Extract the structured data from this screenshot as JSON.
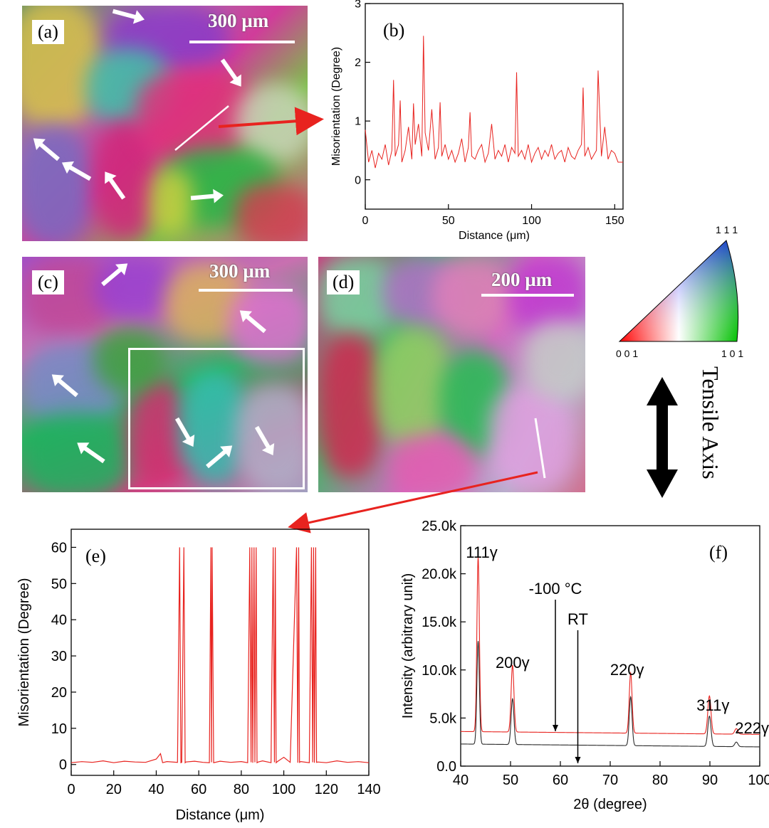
{
  "panels": {
    "a": {
      "label": "(a)",
      "scale": "300 µm"
    },
    "b": {
      "label": "(b)"
    },
    "c": {
      "label": "(c)",
      "scale": "300 µm"
    },
    "d": {
      "label": "(d)",
      "scale": "200 µm"
    },
    "e": {
      "label": "(e)"
    },
    "f": {
      "label": "(f)"
    }
  },
  "ipf_key": {
    "top": "1 1 1",
    "left": "0 0 1",
    "right": "1 0 1"
  },
  "tensile_axis": "Tensile Axis",
  "colors": {
    "red": "#e8231f",
    "dark": "#2b2b2b"
  },
  "chart_data": [
    {
      "id": "b",
      "type": "line",
      "title": "",
      "xlabel": "Distance (μm)",
      "ylabel": "Misorientation (Degree)",
      "xlim": [
        0,
        155
      ],
      "ylim": [
        -0.5,
        3
      ],
      "xticks": [
        0,
        50,
        100,
        150
      ],
      "yticks": [
        0,
        1,
        2,
        3
      ],
      "series": [
        {
          "name": "misorientation",
          "color": "#e8231f",
          "x": [
            0,
            2,
            4,
            6,
            8,
            10,
            12,
            14,
            16,
            17,
            18,
            20,
            21,
            22,
            24,
            26,
            28,
            29,
            30,
            32,
            34,
            35,
            36,
            38,
            40,
            42,
            44,
            45,
            46,
            48,
            50,
            52,
            54,
            56,
            58,
            60,
            62,
            63,
            64,
            66,
            68,
            70,
            72,
            74,
            76,
            78,
            80,
            82,
            84,
            86,
            88,
            90,
            91,
            92,
            94,
            96,
            98,
            100,
            102,
            104,
            106,
            108,
            110,
            112,
            114,
            116,
            118,
            120,
            122,
            124,
            126,
            128,
            130,
            131,
            132,
            134,
            136,
            138,
            139,
            140,
            142,
            144,
            146,
            148,
            150,
            152,
            155
          ],
          "y": [
            0.85,
            0.3,
            0.5,
            0.2,
            0.45,
            0.35,
            0.6,
            0.25,
            0.5,
            1.7,
            0.4,
            0.6,
            1.35,
            0.3,
            0.5,
            0.9,
            0.35,
            1.3,
            0.6,
            0.95,
            0.4,
            2.45,
            0.8,
            0.5,
            1.2,
            0.35,
            0.55,
            1.32,
            0.4,
            0.6,
            0.35,
            0.5,
            0.3,
            0.45,
            0.7,
            0.3,
            0.55,
            1.15,
            0.4,
            0.35,
            0.5,
            0.6,
            0.3,
            0.45,
            0.95,
            0.35,
            0.5,
            0.4,
            0.6,
            0.3,
            0.55,
            0.45,
            1.83,
            0.4,
            0.5,
            0.35,
            0.6,
            0.3,
            0.45,
            0.55,
            0.35,
            0.5,
            0.4,
            0.6,
            0.35,
            0.45,
            0.5,
            0.3,
            0.55,
            0.4,
            0.35,
            0.5,
            0.6,
            1.57,
            0.4,
            0.55,
            0.35,
            0.45,
            0.5,
            1.86,
            0.4,
            0.9,
            0.35,
            0.5,
            0.45,
            0.3,
            0.3
          ]
        }
      ]
    },
    {
      "id": "e",
      "type": "line",
      "title": "",
      "xlabel": "Distance (μm)",
      "ylabel": "Misorientation (Degree)",
      "xlim": [
        0,
        140
      ],
      "ylim": [
        -3,
        65
      ],
      "xticks": [
        0,
        20,
        40,
        60,
        80,
        100,
        120,
        140
      ],
      "yticks": [
        0,
        10,
        20,
        30,
        40,
        50,
        60
      ],
      "series": [
        {
          "name": "misorientation",
          "color": "#e8231f",
          "x": [
            0,
            5,
            10,
            15,
            20,
            25,
            30,
            35,
            40,
            42,
            43,
            45,
            50,
            51,
            51.6,
            52,
            53,
            53.6,
            54,
            58,
            62,
            65,
            65.7,
            66,
            66.3,
            67,
            70,
            75,
            80,
            83,
            84,
            84.6,
            85,
            85.4,
            86,
            86.4,
            87,
            87.4,
            88,
            90,
            94,
            95,
            95.6,
            96,
            96.4,
            97,
            100,
            103,
            106,
            106.6,
            107,
            107.4,
            108,
            112,
            113,
            113.6,
            114,
            114.4,
            115,
            115.4,
            116,
            120,
            125,
            130,
            135,
            140
          ],
          "y": [
            0.5,
            0.8,
            0.6,
            1.0,
            0.5,
            0.9,
            0.7,
            0.6,
            1.5,
            3.0,
            0.5,
            0.8,
            0.6,
            60,
            0.5,
            0.6,
            60,
            0.5,
            0.7,
            0.9,
            0.6,
            0.5,
            60,
            0.6,
            60,
            0.5,
            0.9,
            0.6,
            0.8,
            0.5,
            60,
            0.6,
            60,
            0.5,
            60,
            0.6,
            60,
            0.5,
            0.7,
            1.0,
            0.5,
            60,
            0.6,
            60,
            0.5,
            0.8,
            2.0,
            0.6,
            60,
            0.5,
            60,
            0.6,
            0.8,
            0.5,
            60,
            0.6,
            60,
            0.5,
            60,
            0.6,
            0.7,
            0.5,
            1.0,
            0.6,
            0.8,
            0.5
          ]
        }
      ]
    },
    {
      "id": "f",
      "type": "line",
      "title": "",
      "xlabel": "2θ (degree)",
      "ylabel": "Intensity (arbitrary unit)",
      "xlim": [
        40,
        100
      ],
      "ylim": [
        0,
        25000
      ],
      "xticks": [
        40,
        50,
        60,
        70,
        80,
        90,
        100
      ],
      "yticks": [
        0,
        5000,
        10000,
        15000,
        20000,
        25000
      ],
      "ytick_labels": [
        "0.0",
        "5.0k",
        "10.0k",
        "15.0k",
        "20.0k",
        "25.0k"
      ],
      "peaks": [
        {
          "label": "111γ",
          "x": 43.5
        },
        {
          "label": "200γ",
          "x": 50.4
        },
        {
          "label": "220γ",
          "x": 74.1
        },
        {
          "label": "311γ",
          "x": 89.9
        },
        {
          "label": "222γ",
          "x": 95.3
        }
      ],
      "annotations": [
        {
          "text": "-100 °C",
          "x": 59
        },
        {
          "text": "RT",
          "x": 63.5
        }
      ],
      "series": [
        {
          "name": "-100 °C",
          "color": "#e8231f",
          "baseline": 3600,
          "baseline_end": 3300,
          "peak_heights": [
            21700,
            10500,
            9700,
            7300,
            3900
          ]
        },
        {
          "name": "RT",
          "color": "#2b2b2b",
          "baseline": 2300,
          "baseline_end": 2000,
          "peak_heights": [
            13000,
            7000,
            7200,
            5200,
            2500
          ]
        }
      ]
    }
  ]
}
